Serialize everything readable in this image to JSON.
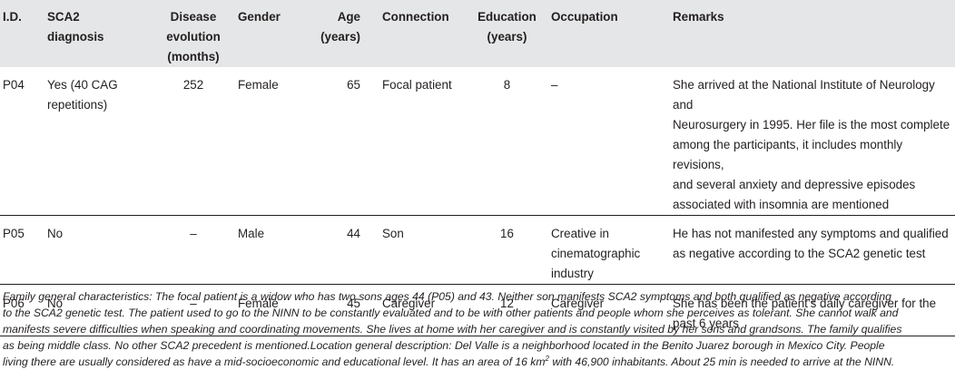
{
  "headers": {
    "id": "I.D.",
    "diagnosis": [
      "SCA2",
      "diagnosis"
    ],
    "evolution": [
      "Disease",
      "evolution",
      "(months)"
    ],
    "gender": "Gender",
    "age": [
      "Age",
      "(years)"
    ],
    "connection": "Connection",
    "education": [
      "Education",
      "(years)"
    ],
    "occupation": "Occupation",
    "remarks": "Remarks"
  },
  "rows": [
    {
      "id": "P04",
      "diagnosis": [
        "Yes (40 CAG",
        "repetitions)"
      ],
      "evolution": "252",
      "gender": "Female",
      "age": "65",
      "connection": "Focal patient",
      "education": "8",
      "occupation": [
        "–"
      ],
      "remarks": [
        "She arrived at the National Institute of Neurology and",
        "Neurosurgery in 1995. Her file is the most complete",
        "among the participants, it includes monthly revisions,",
        "and several anxiety and depressive episodes",
        "associated with insomnia are mentioned"
      ]
    },
    {
      "id": "P05",
      "diagnosis": [
        "No"
      ],
      "evolution": "–",
      "gender": "Male",
      "age": "44",
      "connection": "Son",
      "education": "16",
      "occupation": [
        "Creative in",
        "cinematographic",
        "industry"
      ],
      "remarks": [
        "He has not manifested any symptoms and qualified",
        "as negative according to the SCA2 genetic test"
      ]
    },
    {
      "id": "P06",
      "diagnosis": [
        "No"
      ],
      "evolution": "–",
      "gender": "Female",
      "age": "45",
      "connection": "Caregiver",
      "education": "12",
      "occupation": [
        "Caregiver"
      ],
      "remarks": [
        "She has been the patient’s daily caregiver for the",
        "past 6 years"
      ]
    }
  ],
  "footnote": {
    "lines": [
      "Family general characteristics: The focal patient is a widow who has two sons ages 44 (P05) and 43. Neither son manifests SCA2 symptoms and both qualified as negative according",
      "to the SCA2 genetic test. The patient used to go to the NINN to be constantly evaluated and to be with other patients and people whom she perceives as tolerant. She cannot walk and",
      "manifests severe difficulties when speaking and coordinating movements. She lives at home with her caregiver and is constantly visited by her sons and grandsons. The family qualifies",
      "as being middle class. No other SCA2 precedent is mentioned.Location general description: Del Valle is a neighborhood located in the Benito Juarez borough in Mexico City. People",
      "living there are usually considered as have a mid-socioeconomic and educational level. It has an area of 16 km"
    ],
    "sup": "2",
    "last_line_tail": " with 46,900 inhabitants. About 25 min is needed to arrive at the NINN."
  }
}
